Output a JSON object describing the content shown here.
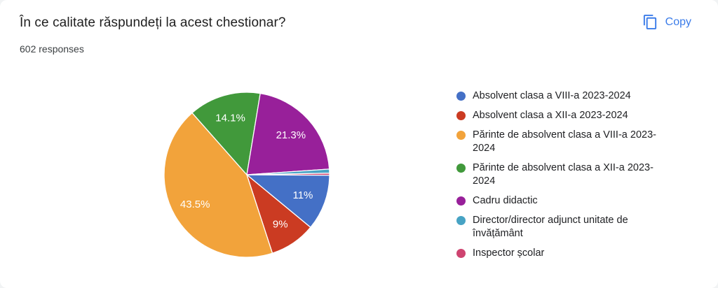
{
  "header": {
    "title": "În ce calitate răspundeți la acest chestionar?",
    "responses": "602 responses",
    "copy_label": "Copy"
  },
  "colors": {
    "accent": "#3b7ce9",
    "percent_label": "#ffffff",
    "title_text": "#1f1f1f",
    "legend_text": "#202124"
  },
  "chart_data": {
    "type": "pie",
    "title": "În ce calitate răspundeți la acest chestionar?",
    "subtitle": "602 responses",
    "total_responses": 602,
    "start_angle": "3-oclock",
    "direction": "clockwise",
    "legend_position": "right",
    "slices": [
      {
        "label": "Absolvent clasa a VIII-a 2023-2024",
        "percent": 11,
        "display": "11%",
        "color": "#4470c6"
      },
      {
        "label": "Absolvent clasa a XII-a 2023-2024",
        "percent": 9,
        "display": "9%",
        "color": "#cb3b22"
      },
      {
        "label": "Părinte de absolvent clasa a VIII-a 2023-2024",
        "percent": 43.5,
        "display": "43.5%",
        "color": "#f2a33b"
      },
      {
        "label": "Părinte de absolvent clasa a XII-a 2023-2024",
        "percent": 14.1,
        "display": "14.1%",
        "color": "#41993b"
      },
      {
        "label": "Cadru didactic",
        "percent": 21.3,
        "display": "21.3%",
        "color": "#98209a"
      },
      {
        "label": "Director/director adjunct unitate de învățământ",
        "percent": 0.8,
        "display": "",
        "color": "#47a3c4"
      },
      {
        "label": "Inspector școlar",
        "percent": 0.4,
        "display": "",
        "color": "#ce4470"
      }
    ]
  }
}
